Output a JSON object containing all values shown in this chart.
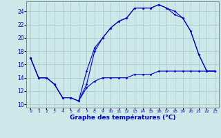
{
  "xlabel": "Graphe des températures (°C)",
  "background_color": "#cce8e8",
  "grid_color": "#aacccc",
  "line_color": "#0000cc",
  "xlim": [
    -0.5,
    23.5
  ],
  "ylim": [
    9.5,
    25.5
  ],
  "yticks": [
    10,
    12,
    14,
    16,
    18,
    20,
    22,
    24
  ],
  "xticks": [
    0,
    1,
    2,
    3,
    4,
    5,
    6,
    7,
    8,
    9,
    10,
    11,
    12,
    13,
    14,
    15,
    16,
    17,
    18,
    19,
    20,
    21,
    22,
    23
  ],
  "series1_x": [
    0,
    1,
    2,
    3,
    4,
    5,
    6,
    7,
    8,
    9,
    10,
    11,
    12,
    13,
    14,
    15,
    16,
    17,
    18,
    19,
    20,
    21,
    22,
    23
  ],
  "series1_y": [
    17,
    14,
    14,
    13,
    11,
    11,
    10.5,
    12.5,
    13.5,
    14,
    14,
    14,
    14,
    14.5,
    14.5,
    14.5,
    15,
    15,
    15,
    15,
    15,
    15,
    15,
    15
  ],
  "series2_x": [
    0,
    1,
    2,
    3,
    4,
    5,
    6,
    7,
    8,
    9,
    10,
    11,
    12,
    13,
    14,
    15,
    16,
    17,
    18,
    19,
    20,
    21,
    22,
    23
  ],
  "series2_y": [
    17,
    14,
    14,
    13,
    11,
    11,
    10.5,
    15,
    18.5,
    20,
    21.5,
    22.5,
    23,
    24.5,
    24.5,
    24.5,
    25,
    24.5,
    23.5,
    23,
    21,
    17.5,
    15,
    15
  ],
  "series3_x": [
    0,
    1,
    2,
    3,
    4,
    5,
    6,
    7,
    8,
    9,
    10,
    11,
    12,
    13,
    14,
    15,
    16,
    17,
    18,
    19,
    20,
    21,
    22,
    23
  ],
  "series3_y": [
    17,
    14,
    14,
    13,
    11,
    11,
    10.5,
    13,
    18,
    20,
    21.5,
    22.5,
    23,
    24.5,
    24.5,
    24.5,
    25,
    24.5,
    24,
    23,
    21,
    17.5,
    15,
    15
  ]
}
